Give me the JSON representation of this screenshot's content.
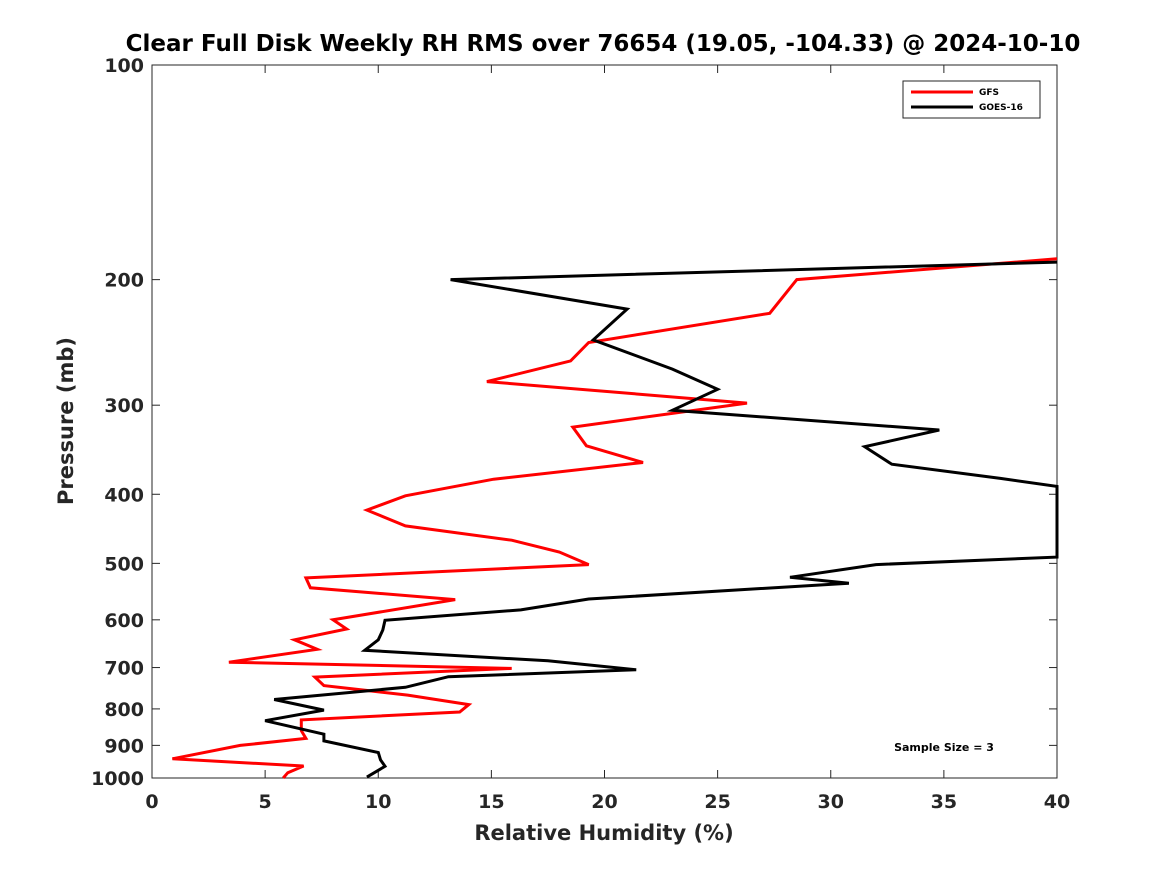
{
  "chart_data": {
    "type": "line",
    "title": "Clear Full Disk Weekly RH RMS over 76654 (19.05, -104.33) @ 2024-10-10",
    "xlabel": "Relative Humidity (%)",
    "ylabel": "Pressure (mb)",
    "xlim": [
      0,
      40
    ],
    "ylim": [
      100,
      1000
    ],
    "yscale": "log",
    "yreverse": true,
    "xticks": [
      0,
      5,
      10,
      15,
      20,
      25,
      30,
      35,
      40
    ],
    "yticks": [
      100,
      200,
      300,
      400,
      500,
      600,
      700,
      800,
      900,
      1000
    ],
    "legend_position": "top-right",
    "annotation": "Sample Size = 3",
    "series": [
      {
        "name": "GFS",
        "color": "#ff0000",
        "points": [
          [
            40,
            187
          ],
          [
            28.5,
            200
          ],
          [
            27.3,
            223
          ],
          [
            19.3,
            245
          ],
          [
            18.5,
            260
          ],
          [
            14.8,
            278
          ],
          [
            26.3,
            298
          ],
          [
            18.6,
            322
          ],
          [
            19.2,
            342
          ],
          [
            21.7,
            361
          ],
          [
            15.1,
            381
          ],
          [
            11.2,
            402
          ],
          [
            9.5,
            421
          ],
          [
            11.2,
            443
          ],
          [
            15.9,
            464
          ],
          [
            18.0,
            482
          ],
          [
            19.3,
            502
          ],
          [
            6.8,
            524
          ],
          [
            7.0,
            541
          ],
          [
            13.4,
            562
          ],
          [
            8.0,
            600
          ],
          [
            8.6,
            618
          ],
          [
            6.3,
            640
          ],
          [
            7.3,
            660
          ],
          [
            3.4,
            688
          ],
          [
            15.9,
            702
          ],
          [
            7.2,
            722
          ],
          [
            7.6,
            742
          ],
          [
            11.3,
            765
          ],
          [
            14.0,
            789
          ],
          [
            13.6,
            808
          ],
          [
            6.6,
            829
          ],
          [
            6.6,
            858
          ],
          [
            6.8,
            880
          ],
          [
            3.9,
            900
          ],
          [
            0.9,
            940
          ],
          [
            6.7,
            962
          ],
          [
            6.0,
            983
          ],
          [
            5.8,
            1000
          ]
        ]
      },
      {
        "name": "GOES-16",
        "color": "#000000",
        "points": [
          [
            40,
            189
          ],
          [
            13.2,
            200
          ],
          [
            21.0,
            220
          ],
          [
            19.5,
            243
          ],
          [
            23.0,
            267
          ],
          [
            25.0,
            285
          ],
          [
            23.0,
            305
          ],
          [
            34.8,
            325
          ],
          [
            31.5,
            343
          ],
          [
            32.7,
            363
          ],
          [
            37.5,
            380
          ],
          [
            40,
            390
          ],
          [
            40,
            490
          ],
          [
            32.0,
            502
          ],
          [
            28.2,
            523
          ],
          [
            30.8,
            533
          ],
          [
            19.3,
            561
          ],
          [
            16.3,
            581
          ],
          [
            10.3,
            601
          ],
          [
            10.2,
            620
          ],
          [
            10.0,
            640
          ],
          [
            9.4,
            662
          ],
          [
            17.5,
            685
          ],
          [
            21.4,
            705
          ],
          [
            13.1,
            721
          ],
          [
            11.2,
            746
          ],
          [
            5.4,
            776
          ],
          [
            7.6,
            803
          ],
          [
            5.0,
            831
          ],
          [
            7.6,
            868
          ],
          [
            7.6,
            887
          ],
          [
            10.0,
            921
          ],
          [
            10.1,
            943
          ],
          [
            10.3,
            963
          ],
          [
            9.5,
            997
          ]
        ]
      }
    ]
  }
}
